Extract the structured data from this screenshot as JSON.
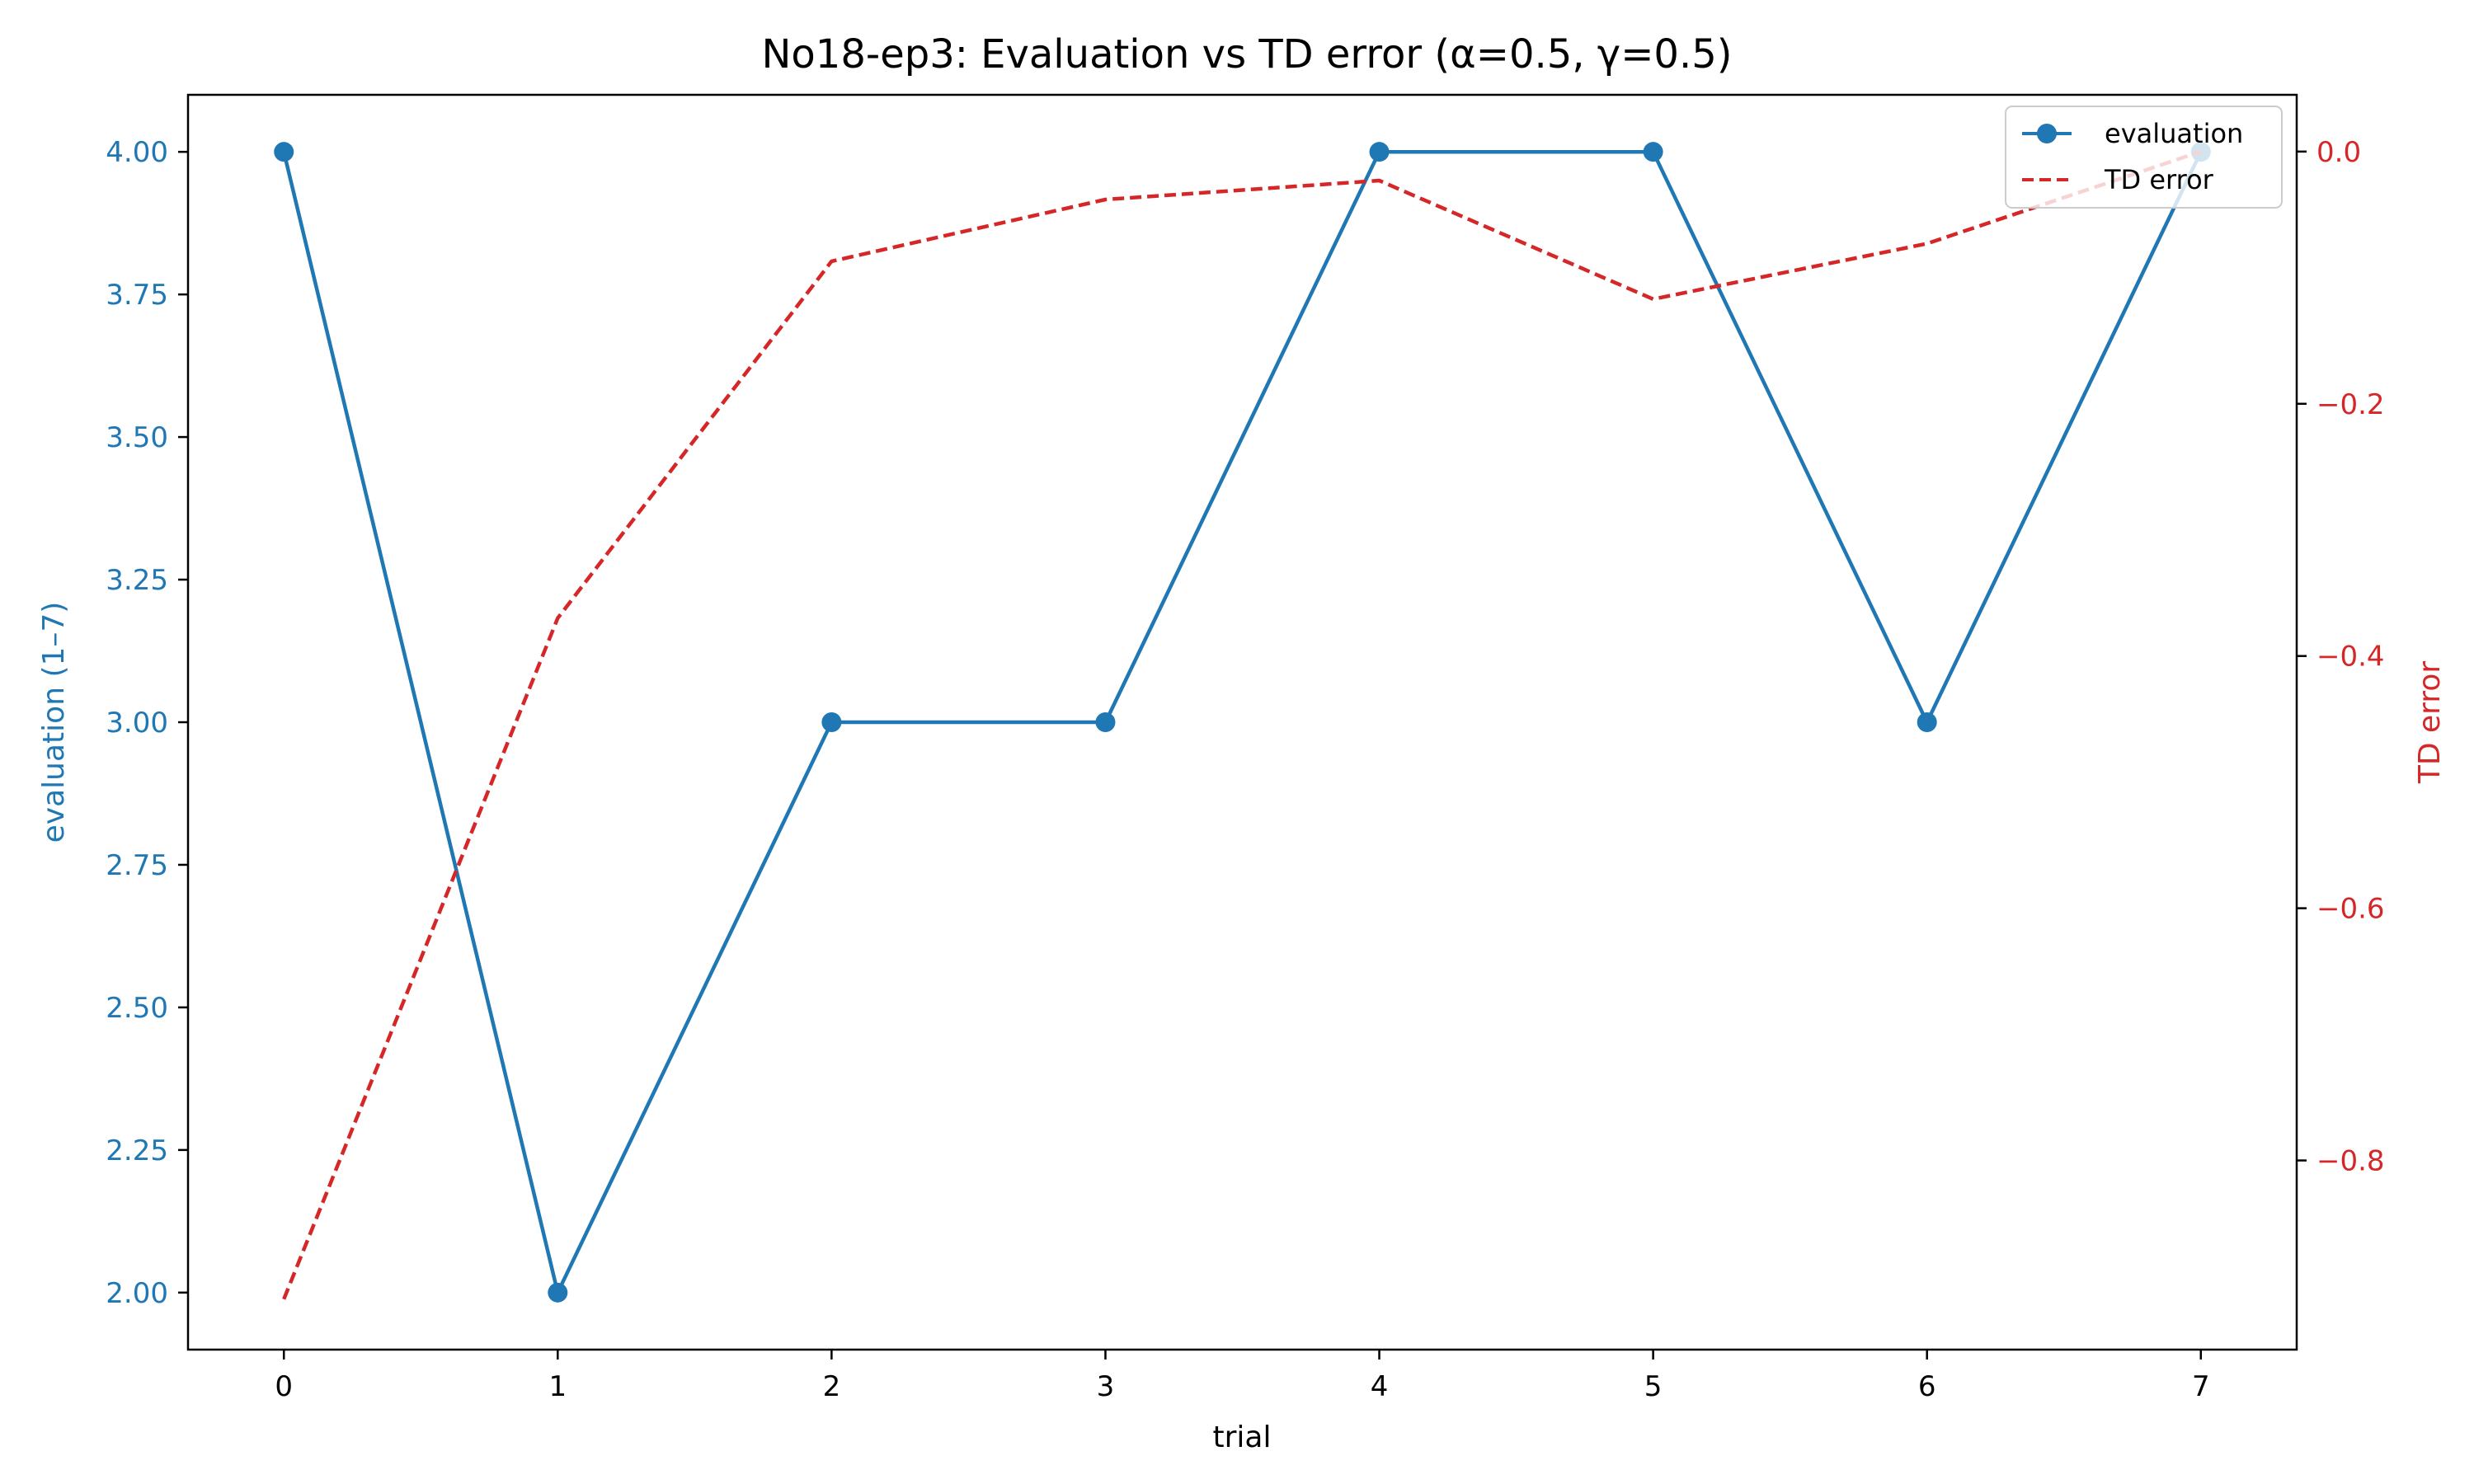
{
  "chart_data": {
    "type": "line",
    "title": "No18-ep3: Evaluation vs TD error (α=0.5, γ=0.5)",
    "xlabel": "trial",
    "ylabel": "evaluation (1–7)",
    "y2label": "TD error",
    "x": [
      0,
      1,
      2,
      3,
      4,
      5,
      6,
      7
    ],
    "x_ticks": [
      "0",
      "1",
      "2",
      "3",
      "4",
      "5",
      "6",
      "7"
    ],
    "xlim": [
      -0.35,
      7.35
    ],
    "ylim": [
      1.9,
      4.1
    ],
    "y_ticks": [
      "2.00",
      "2.25",
      "2.50",
      "2.75",
      "3.00",
      "3.25",
      "3.50",
      "3.75",
      "4.00"
    ],
    "y2lim": [
      -0.95,
      0.045
    ],
    "y2_ticks": [
      "0.0",
      "−0.2",
      "−0.4",
      "−0.6",
      "−0.8"
    ],
    "series": [
      {
        "name": "evaluation",
        "axis": "left",
        "color": "#1f77b4",
        "style": "solid-markers",
        "values": [
          4,
          2,
          3,
          3,
          4,
          4,
          3,
          4
        ]
      },
      {
        "name": "TD error",
        "axis": "right",
        "color": "#d62728",
        "style": "dashed",
        "values": [
          -0.91,
          -0.37,
          -0.087,
          -0.038,
          -0.023,
          -0.117,
          -0.073,
          0.0
        ]
      }
    ],
    "grid": false,
    "legend_position": "top-right"
  }
}
